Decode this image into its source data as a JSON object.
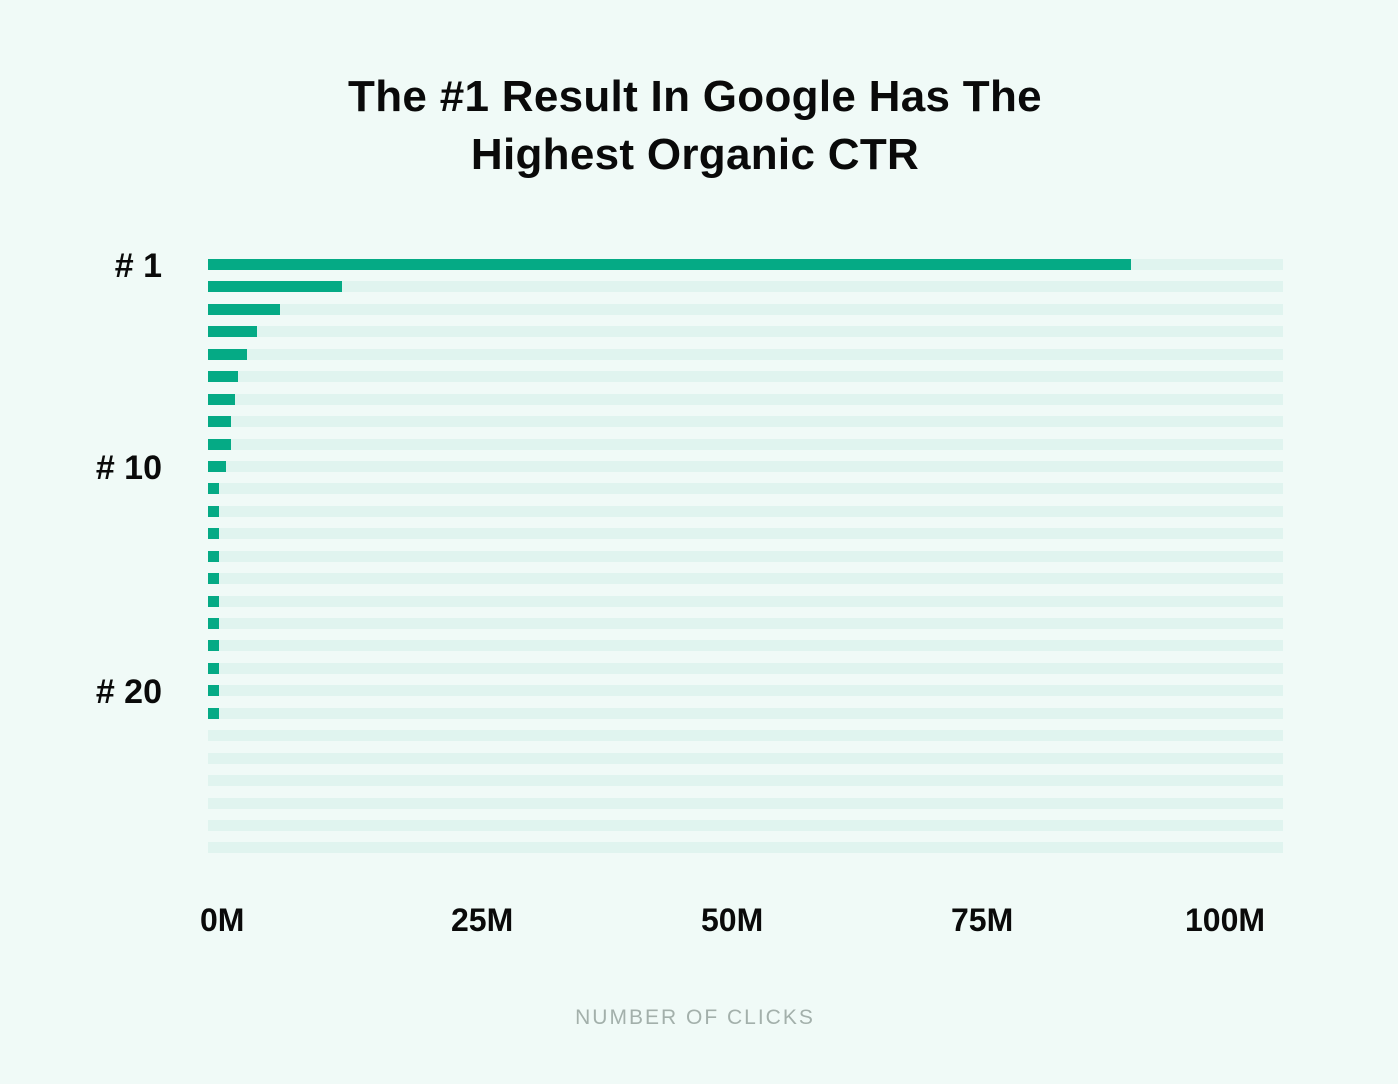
{
  "chart_data": {
    "type": "bar",
    "orientation": "horizontal",
    "title": "The #1 Result In Google Has The Highest Organic CTR",
    "title_lines": [
      "The #1 Result In Google Has The",
      "Highest Organic CTR"
    ],
    "xlabel": "NUMBER OF CLICKS",
    "ylabel": "",
    "xlim": [
      0,
      100
    ],
    "x_unit": "M",
    "x_tick_labels": [
      "0M",
      "25M",
      "50M",
      "75M",
      "100M"
    ],
    "y_tick_labels": [
      {
        "label": "# 1",
        "position": 1
      },
      {
        "label": "# 10",
        "position": 10
      },
      {
        "label": "# 20",
        "position": 20
      }
    ],
    "categories": [
      "1",
      "2",
      "3",
      "4",
      "5",
      "6",
      "7",
      "8",
      "9",
      "10",
      "11",
      "12",
      "13",
      "14",
      "15",
      "16",
      "17",
      "18",
      "19",
      "20",
      "21",
      "22",
      "23",
      "24",
      "25",
      "26",
      "27"
    ],
    "values": [
      85.9,
      12.5,
      6.7,
      4.6,
      3.6,
      2.8,
      2.5,
      2.1,
      2.1,
      1.7,
      1.0,
      1.0,
      1.0,
      1.0,
      1.0,
      0.5,
      0.5,
      0.5,
      0.2,
      0.2,
      0.05,
      0,
      0,
      0,
      0,
      0,
      0
    ],
    "grid": false,
    "legend": null,
    "colors": {
      "bar": "#05aa85",
      "track": "#e0f4ef",
      "background": "#f0faf7"
    }
  }
}
